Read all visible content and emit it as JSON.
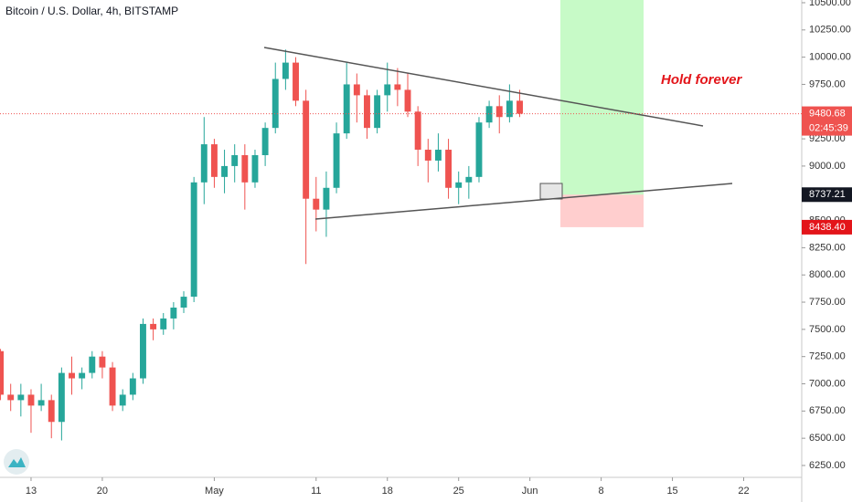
{
  "chart_data": {
    "type": "candlestick",
    "title": "Bitcoin / U.S. Dollar, 4h, BITSTAMP",
    "annotation": "Hold forever",
    "up_color": "#26a69a",
    "down_color": "#ef5350",
    "x": [
      -3,
      -2,
      -1,
      0,
      1,
      2,
      3,
      4,
      5,
      6,
      7,
      8,
      9,
      10,
      11,
      12,
      13,
      14,
      15,
      16,
      17,
      18,
      19,
      20,
      21,
      22,
      23,
      24,
      25,
      26,
      27,
      28,
      29,
      30,
      31,
      32,
      33,
      34,
      35,
      36,
      37,
      38,
      39,
      40,
      41,
      42,
      43,
      44,
      45,
      46,
      47,
      48
    ],
    "open": [
      7300,
      6900,
      6850,
      6900,
      6800,
      6850,
      6650,
      7100,
      7050,
      7100,
      7250,
      7150,
      6800,
      6900,
      7050,
      7550,
      7500,
      7600,
      7700,
      7800,
      8850,
      9200,
      8900,
      9000,
      9100,
      8850,
      9100,
      9350,
      9800,
      9950,
      9600,
      8700,
      8600,
      8800,
      9300,
      9750,
      9650,
      9350,
      9650,
      9750,
      9700,
      9500,
      9150,
      9050,
      9150,
      8800,
      8850,
      8900,
      9400,
      9550,
      9450,
      9600
    ],
    "high": [
      7320,
      7000,
      7000,
      6950,
      7000,
      6900,
      7150,
      7250,
      7150,
      7300,
      7300,
      7200,
      6950,
      7100,
      7600,
      7600,
      7650,
      7750,
      7850,
      8900,
      9450,
      9250,
      9150,
      9200,
      9200,
      9150,
      9400,
      9950,
      10070,
      10000,
      9700,
      8900,
      8950,
      9400,
      9950,
      9850,
      9700,
      9700,
      9950,
      9900,
      9850,
      9550,
      9250,
      9300,
      9250,
      8950,
      9000,
      9450,
      9600,
      9650,
      9750,
      9700
    ],
    "low": [
      6850,
      6750,
      6700,
      6550,
      6750,
      6500,
      6480,
      6900,
      6950,
      7050,
      7050,
      6750,
      6750,
      6850,
      7000,
      7400,
      7450,
      7500,
      7650,
      7750,
      8650,
      8800,
      8750,
      8850,
      8600,
      8800,
      9000,
      9300,
      9700,
      9550,
      8100,
      8400,
      8350,
      8750,
      9250,
      9400,
      9250,
      9300,
      9500,
      9550,
      9450,
      9000,
      8850,
      8950,
      8700,
      8650,
      8700,
      8850,
      9350,
      9300,
      9400,
      9450
    ],
    "close": [
      6900,
      6850,
      6900,
      6800,
      6850,
      6650,
      7100,
      7050,
      7100,
      7250,
      7150,
      6800,
      6900,
      7050,
      7550,
      7500,
      7600,
      7700,
      7800,
      8850,
      9200,
      8900,
      9000,
      9100,
      8850,
      9100,
      9350,
      9800,
      9950,
      9600,
      8700,
      8600,
      8800,
      9300,
      9750,
      9650,
      9350,
      9650,
      9750,
      9700,
      9500,
      9150,
      9050,
      9150,
      8800,
      8850,
      8900,
      9400,
      9550,
      9450,
      9600,
      9480.68
    ],
    "xlim": [
      -3.05,
      75.7
    ],
    "xticks": [
      {
        "value": 0,
        "label": "13"
      },
      {
        "value": 7,
        "label": "20"
      },
      {
        "value": 18,
        "label": "May"
      },
      {
        "value": 28,
        "label": "11"
      },
      {
        "value": 35,
        "label": "18"
      },
      {
        "value": 42,
        "label": "25"
      },
      {
        "value": 49,
        "label": "Jun"
      },
      {
        "value": 56,
        "label": "8"
      },
      {
        "value": 63,
        "label": "15"
      },
      {
        "value": 70,
        "label": "22"
      }
    ],
    "ylim": [
      6166,
      10525
    ],
    "yticks": [
      {
        "value": 6250,
        "label": "6250.00"
      },
      {
        "value": 6500,
        "label": "6500.00"
      },
      {
        "value": 6750,
        "label": "6750.00"
      },
      {
        "value": 7000,
        "label": "7000.00"
      },
      {
        "value": 7250,
        "label": "7250.00"
      },
      {
        "value": 7500,
        "label": "7500.00"
      },
      {
        "value": 7750,
        "label": "7750.00"
      },
      {
        "value": 8000,
        "label": "8000.00"
      },
      {
        "value": 8250,
        "label": "8250.00"
      },
      {
        "value": 8500,
        "label": "8500.00"
      },
      {
        "value": 8750,
        "label": "8750.00"
      },
      {
        "value": 9000,
        "label": "9000.00"
      },
      {
        "value": 9250,
        "label": "9250.00"
      },
      {
        "value": 9500,
        "label": "9500.00"
      },
      {
        "value": 9750,
        "label": "9750.00"
      },
      {
        "value": 10000,
        "label": "10000.00"
      },
      {
        "value": 10250,
        "label": "10250.00"
      },
      {
        "value": 10500,
        "label": "10500.00"
      }
    ],
    "last_price": 9480.68,
    "countdown": "02:45:39",
    "entry_price": 8737.21,
    "stop_price": {
      "value": 8438.4,
      "label": "8438.40"
    }
  }
}
